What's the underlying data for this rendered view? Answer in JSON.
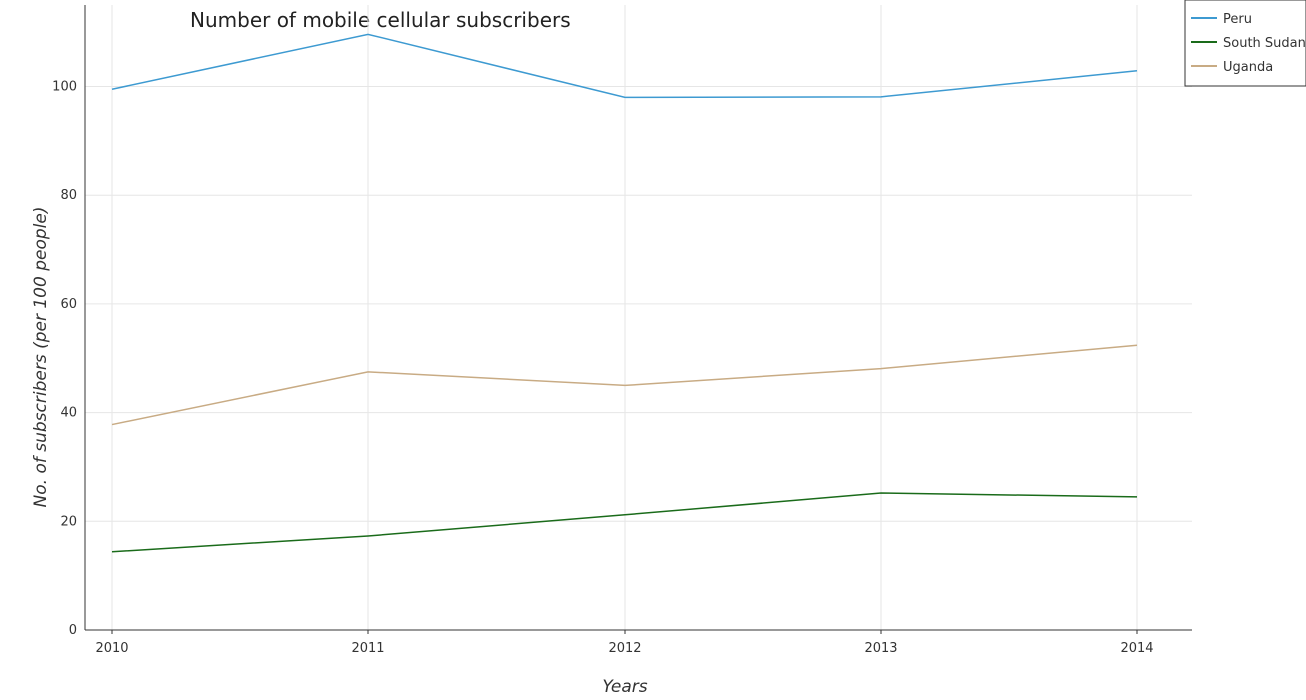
{
  "chart_data": {
    "type": "line",
    "title": "Number of mobile cellular subscribers",
    "xlabel": "Years",
    "ylabel": "No. of subscribers (per 100 people)",
    "categories": [
      "2010",
      "2011",
      "2012",
      "2013",
      "2014"
    ],
    "ylim": [
      0,
      115
    ],
    "yticks": [
      0,
      20,
      40,
      60,
      80,
      100
    ],
    "grid": true,
    "legend_position": "top-right",
    "series": [
      {
        "name": "Peru",
        "color": "#3d9ad1",
        "values": [
          99.5,
          109.6,
          98.0,
          98.1,
          102.9
        ]
      },
      {
        "name": "South Sudan",
        "color": "#1a6b1a",
        "values": [
          14.4,
          17.3,
          21.2,
          25.2,
          24.5
        ]
      },
      {
        "name": "Uganda",
        "color": "#c8ab84",
        "values": [
          37.8,
          47.5,
          45.0,
          48.1,
          52.4
        ]
      }
    ]
  }
}
